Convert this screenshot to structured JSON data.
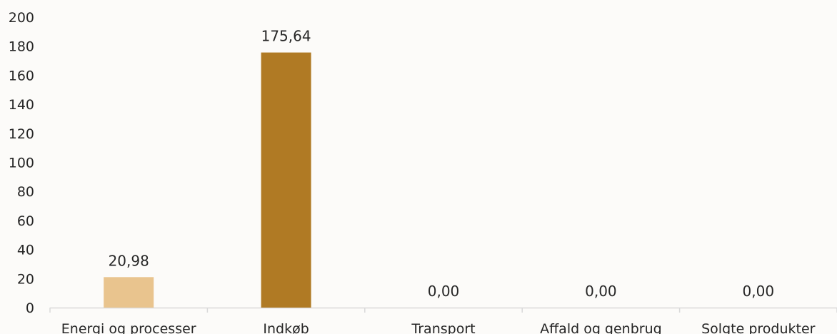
{
  "chart_data": {
    "type": "bar",
    "categories": [
      "Energi og processer",
      "Indkøb",
      "Transport",
      "Affald og genbrug",
      "Solgte produkter"
    ],
    "values": [
      20.98,
      175.64,
      0,
      0,
      0
    ],
    "data_labels": [
      "20,98",
      "175,64",
      "0,00",
      "0,00",
      "0,00"
    ],
    "bar_colors": [
      "#e9c48e",
      "#b07a24",
      "#b07a24",
      "#b07a24",
      "#b07a24"
    ],
    "ylim": [
      0,
      200
    ],
    "yticks": [
      0,
      20,
      40,
      60,
      80,
      100,
      120,
      140,
      160,
      180,
      200
    ],
    "grid": false,
    "title": "",
    "xlabel": "",
    "ylabel": ""
  }
}
